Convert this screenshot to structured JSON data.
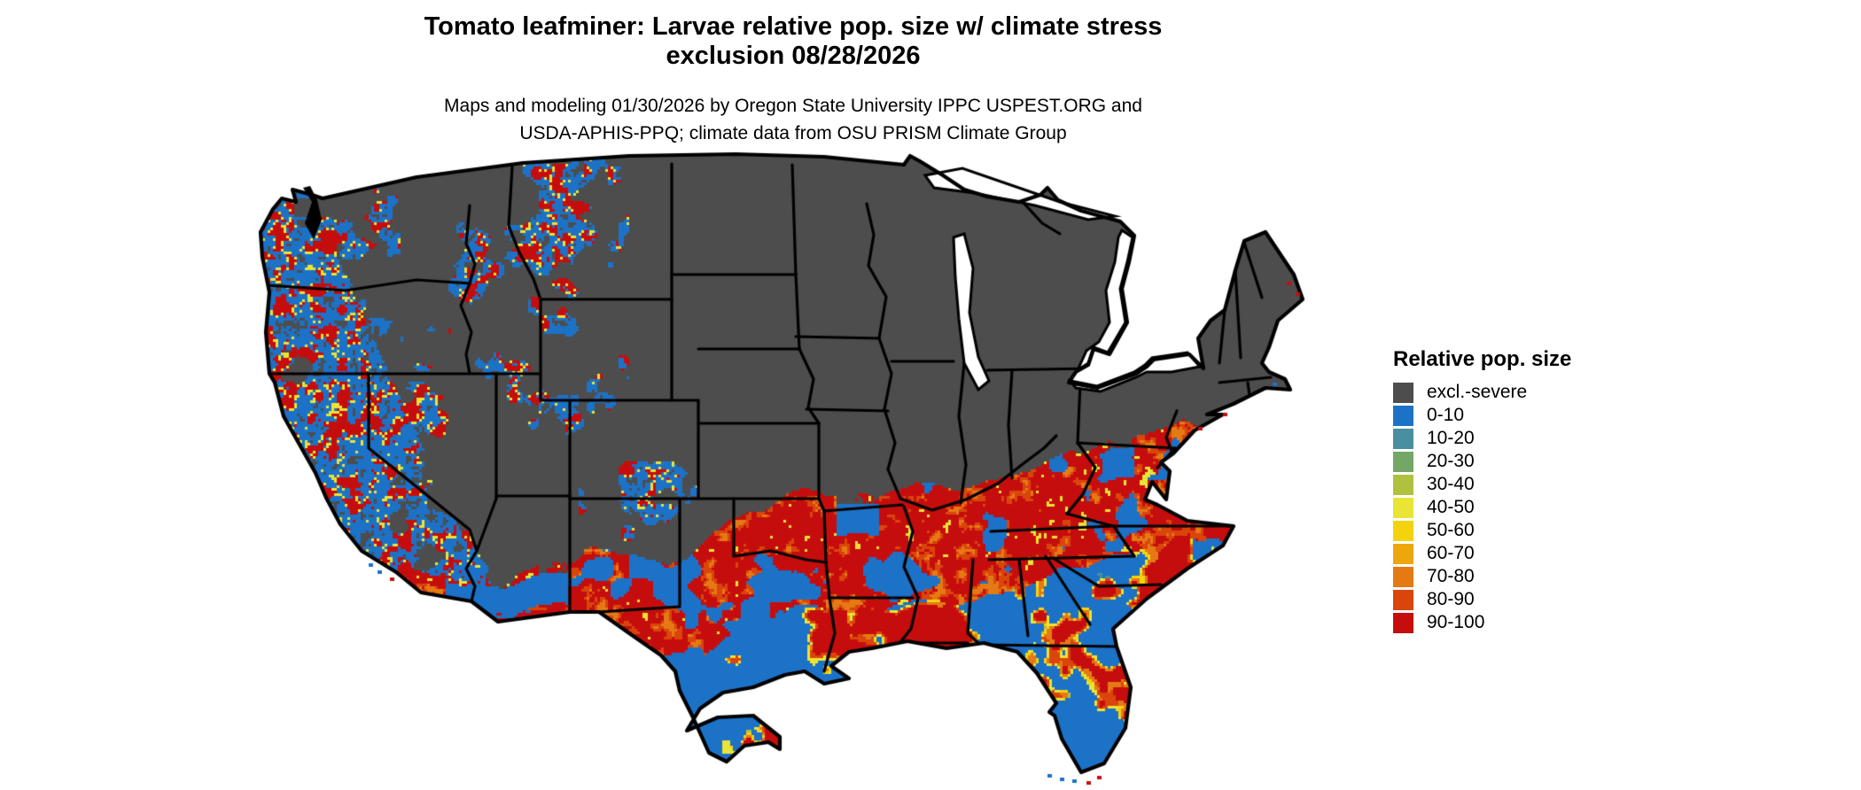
{
  "title": {
    "line1": "Tomato leafminer: Larvae relative pop. size w/ climate stress",
    "line2": "exclusion 08/28/2026"
  },
  "subtitle": {
    "line1": "Maps and modeling 01/30/2026 by Oregon State University IPPC USPEST.ORG and",
    "line2": "USDA-APHIS-PPQ; climate data from OSU PRISM Climate Group"
  },
  "map": {
    "region": "Contiguous United States",
    "style": "raster choropleth of relative population size with climate stress exclusion",
    "excluded_color": "#4d4d4d",
    "border_color": "#000000",
    "water_color": "#ffffff"
  },
  "legend": {
    "title": "Relative pop. size",
    "items": [
      {
        "label": "excl.-severe",
        "color": "#4d4d4d"
      },
      {
        "label": "0-10",
        "color": "#1c72c7"
      },
      {
        "label": "10-20",
        "color": "#4a8fa0"
      },
      {
        "label": "20-30",
        "color": "#74a765"
      },
      {
        "label": "30-40",
        "color": "#b0c140"
      },
      {
        "label": "40-50",
        "color": "#e9e435"
      },
      {
        "label": "50-60",
        "color": "#f5d20e"
      },
      {
        "label": "60-70",
        "color": "#eda70c"
      },
      {
        "label": "70-80",
        "color": "#e57a14"
      },
      {
        "label": "80-90",
        "color": "#da450b"
      },
      {
        "label": "90-100",
        "color": "#c60d0d"
      }
    ]
  }
}
